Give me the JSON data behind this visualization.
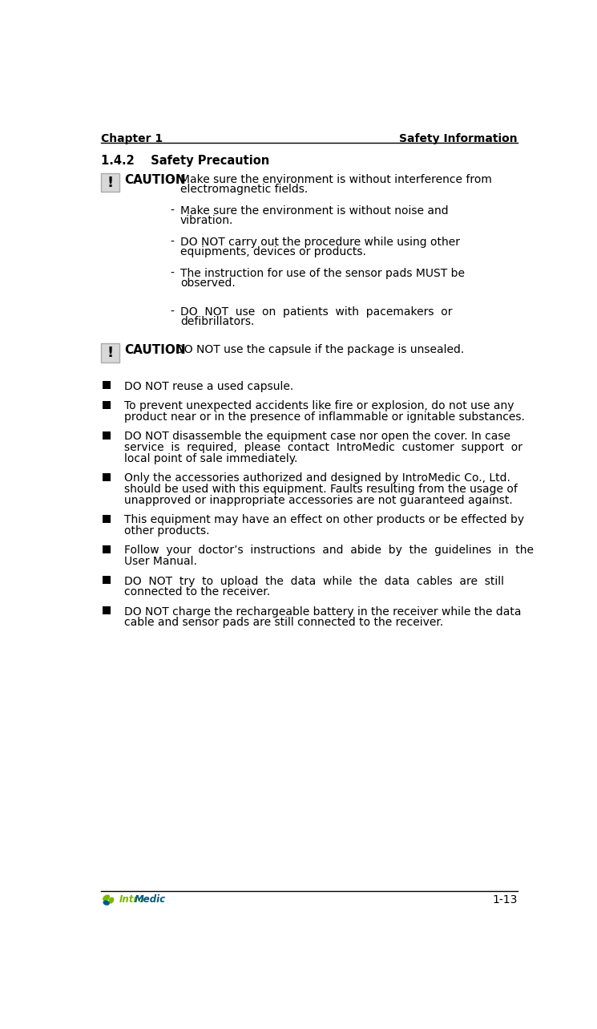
{
  "page_width": 7.45,
  "page_height": 12.83,
  "bg_color": "#ffffff",
  "header_left": "Chapter 1",
  "header_right": "Safety Information",
  "section_title": "1.4.2    Safety Precaution",
  "footer_right": "1-13",
  "caution1_bullets": [
    "Make sure the environment is without interference from\nelectromagnetic fields.",
    "Make sure the environment is without noise and\nvibration.",
    "DO NOT carry out the procedure while using other\nequipments, devices or products.",
    "The instruction for use of the sensor pads MUST be\nobserved.",
    "DO  NOT  use  on  patients  with  pacemakers  or\ndefibrillators."
  ],
  "caution2_text": "DO NOT use the capsule if the package is unsealed.",
  "bullet_items": [
    "DO NOT reuse a used capsule.",
    "To prevent unexpected accidents like fire or explosion, do not use any\nproduct near or in the presence of inflammable or ignitable substances.",
    "DO NOT disassemble the equipment case nor open the cover. In case\nservice  is  required,  please  contact  IntroMedic  customer  support  or\nlocal point of sale immediately.",
    "Only the accessories authorized and designed by IntroMedic Co., Ltd.\nshould be used with this equipment. Faults resulting from the usage of\nunapproved or inappropriate accessories are not guaranteed against.",
    "This equipment may have an effect on other products or be effected by\nother products.",
    "Follow  your  doctor’s  instructions  and  abide  by  the  guidelines  in  the\nUser Manual.",
    "DO  NOT  try  to  upload  the  data  while  the  data  cables  are  still\nconnected to the receiver.",
    "DO NOT charge the rechargeable battery in the receiver while the data\ncable and sensor pads are still connected to the receiver."
  ],
  "text_color": "#000000",
  "header_line_color": "#000000",
  "footer_line_color": "#000000",
  "exclaim_box_edge": "#888888",
  "exclaim_box_face": "#c8c8c8",
  "caution_box_edge": "#aaaaaa",
  "caution_box_face": "#d8d8d8",
  "logo_intro_color": "#7ab800",
  "logo_medic_color": "#005a8b",
  "logo_leaf_green": "#7ab800",
  "logo_leaf_blue": "#005a8b"
}
